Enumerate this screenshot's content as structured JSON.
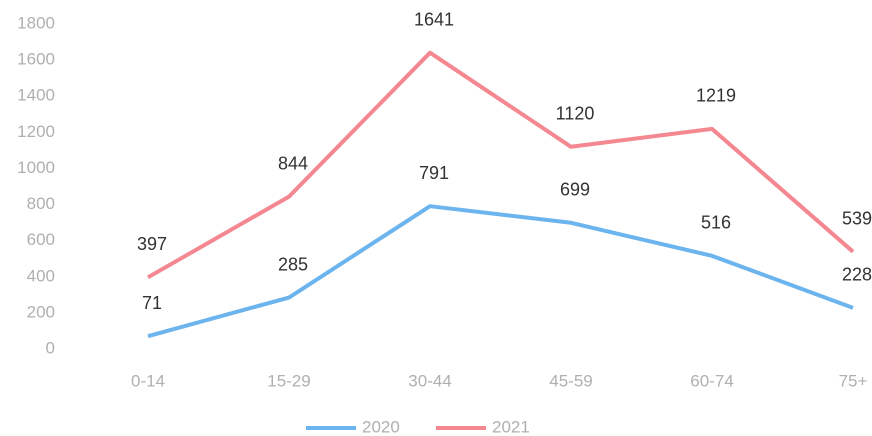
{
  "chart_data": {
    "type": "line",
    "categories": [
      "0-14",
      "15-29",
      "30-44",
      "45-59",
      "60-74",
      "75+"
    ],
    "series": [
      {
        "name": "2020",
        "color": "#6cb4ee",
        "values": [
          71,
          285,
          791,
          699,
          516,
          228
        ]
      },
      {
        "name": "2021",
        "color": "#f4878f",
        "values": [
          397,
          844,
          1641,
          1120,
          1219,
          539
        ]
      }
    ],
    "ylim": [
      0,
      1800
    ],
    "yticks": [
      0,
      200,
      400,
      600,
      800,
      1000,
      1200,
      1400,
      1600,
      1800
    ],
    "grid": false,
    "legend": "bottom"
  }
}
